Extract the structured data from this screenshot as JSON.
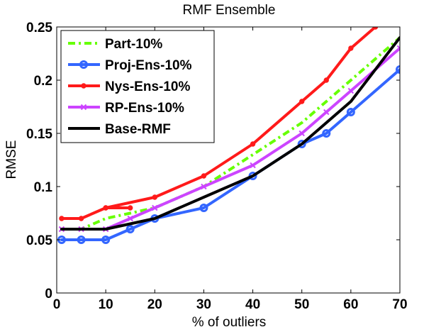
{
  "chart_data": {
    "type": "line",
    "title": "RMF Ensemble",
    "xlabel": "% of outliers",
    "ylabel": "RMSE",
    "xlim": [
      0,
      70
    ],
    "ylim": [
      0,
      0.25
    ],
    "xticks": [
      0,
      10,
      20,
      30,
      40,
      50,
      60,
      70
    ],
    "xtick_labels": [
      "0",
      "10",
      "20",
      "30",
      "40",
      "50",
      "60",
      "70"
    ],
    "yticks": [
      0,
      0.05,
      0.1,
      0.15,
      0.2,
      0.25
    ],
    "ytick_labels": [
      "0",
      "0.05",
      "0.1",
      "0.15",
      "0.2",
      "0.25"
    ],
    "grid": false,
    "legend_position": "top-left",
    "series": [
      {
        "name": "Part-10%",
        "color": "#66ff00",
        "line_style": "dashdot",
        "marker": "none",
        "x": [
          1,
          5,
          10,
          15,
          20,
          30,
          40,
          50,
          55,
          60,
          70
        ],
        "y": [
          0.06,
          0.06,
          0.07,
          0.075,
          0.08,
          0.1,
          0.13,
          0.16,
          0.18,
          0.2,
          0.24
        ]
      },
      {
        "name": "Proj-Ens-10%",
        "color": "#3366ff",
        "line_style": "solid",
        "marker": "circle-open",
        "x": [
          1,
          5,
          10,
          15,
          20,
          30,
          40,
          50,
          55,
          60,
          70
        ],
        "y": [
          0.05,
          0.05,
          0.05,
          0.06,
          0.07,
          0.08,
          0.11,
          0.14,
          0.15,
          0.17,
          0.21
        ]
      },
      {
        "name": "Nys-Ens-10%",
        "color": "#ff1a1a",
        "line_style": "solid",
        "marker": "dot",
        "x": [
          1,
          5,
          10,
          15,
          10,
          20,
          30,
          40,
          50,
          55,
          60,
          65
        ],
        "y": [
          0.07,
          0.07,
          0.08,
          0.08,
          0.08,
          0.09,
          0.11,
          0.14,
          0.18,
          0.2,
          0.23,
          0.25
        ]
      },
      {
        "name": "RP-Ens-10%",
        "color": "#cc44ff",
        "line_style": "solid",
        "marker": "x",
        "x": [
          1,
          5,
          10,
          15,
          20,
          30,
          40,
          50,
          55,
          60,
          70
        ],
        "y": [
          0.06,
          0.06,
          0.06,
          0.07,
          0.08,
          0.1,
          0.12,
          0.15,
          0.17,
          0.19,
          0.23
        ]
      },
      {
        "name": "Base-RMF",
        "color": "#000000",
        "line_style": "solid",
        "marker": "none",
        "x": [
          1,
          5,
          10,
          20,
          30,
          40,
          50,
          60,
          70
        ],
        "y": [
          0.06,
          0.06,
          0.06,
          0.07,
          0.09,
          0.11,
          0.14,
          0.18,
          0.24
        ]
      }
    ]
  }
}
